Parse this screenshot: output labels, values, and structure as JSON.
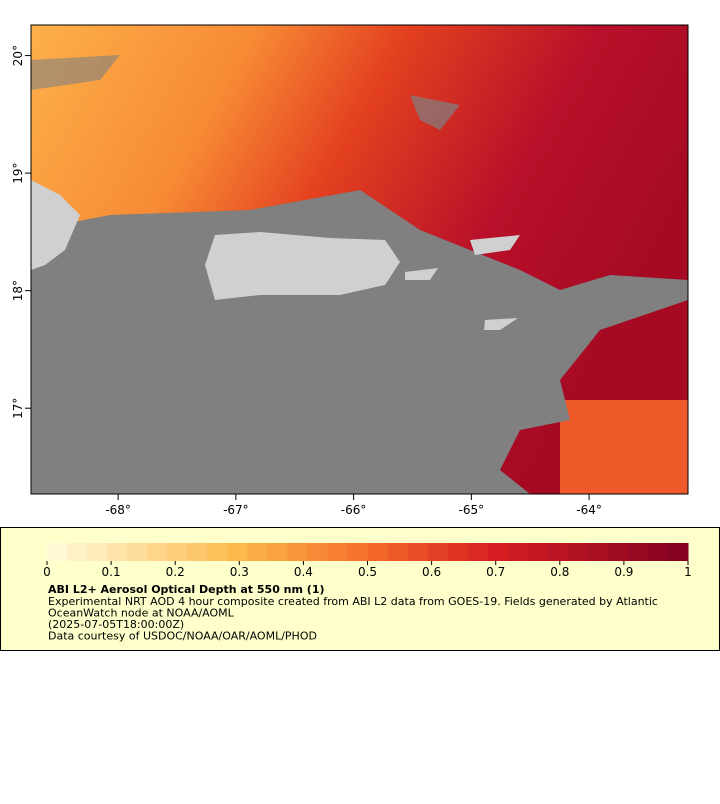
{
  "map": {
    "xlim": [
      -68.74,
      -63.16
    ],
    "ylim": [
      16.27,
      20.26
    ],
    "xticks": [
      {
        "value": -68,
        "label": "-68°"
      },
      {
        "value": -67,
        "label": "-67°"
      },
      {
        "value": -66,
        "label": "-66°"
      },
      {
        "value": -65,
        "label": "-65°"
      },
      {
        "value": -64,
        "label": "-64°"
      }
    ],
    "yticks": [
      {
        "value": 17,
        "label": "17°"
      },
      {
        "value": 18,
        "label": "18°"
      },
      {
        "value": 19,
        "label": "19°"
      },
      {
        "value": 20,
        "label": "20°"
      }
    ]
  },
  "colorbar": {
    "range": [
      0,
      1
    ],
    "ticks": [
      0,
      0.1,
      0.2,
      0.3,
      0.4,
      0.5,
      0.6,
      0.7,
      0.8,
      0.9,
      1
    ]
  },
  "caption": {
    "title": "ABI L2+ Aerosol Optical Depth at 550 nm (1)",
    "lines": [
      "Experimental NRT AOD 4 hour composite created from ABI L2 data from GOES-19. Fields generated by Atlantic",
      "OceanWatch node at NOAA/AOML",
      "(2025-07-05T18:00:00Z)",
      "Data courtesy of USDOC/NOAA/OAR/AOML/PHOD"
    ]
  }
}
